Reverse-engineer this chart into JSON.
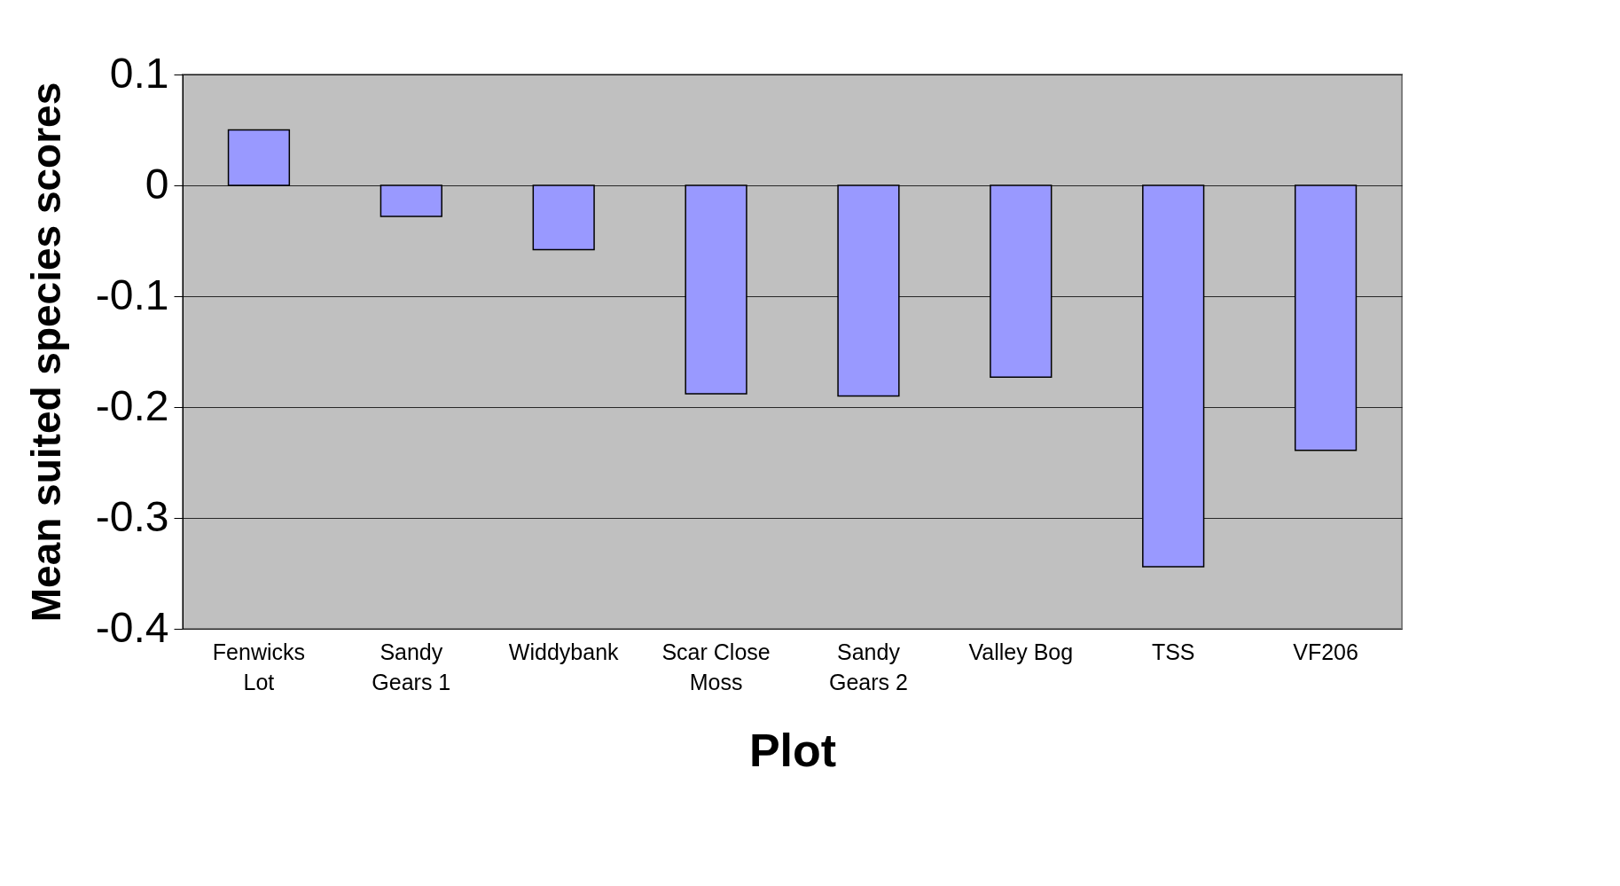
{
  "chart_data": {
    "type": "bar",
    "xlabel": "Plot",
    "ylabel": "Mean suited species scores",
    "categories": [
      "Fenwicks Lot",
      "Sandy Gears 1",
      "Widdybank",
      "Scar Close Moss",
      "Sandy Gears 2",
      "Valley Bog",
      "TSS",
      "VF206"
    ],
    "values": [
      0.05,
      -0.028,
      -0.058,
      -0.188,
      -0.19,
      -0.173,
      -0.344,
      -0.239
    ],
    "color": "#9999ff",
    "ylim": [
      -0.4,
      0.1
    ],
    "yticks": [
      -0.4,
      -0.3,
      -0.2,
      -0.1,
      0,
      0.1
    ],
    "grid": "y"
  }
}
